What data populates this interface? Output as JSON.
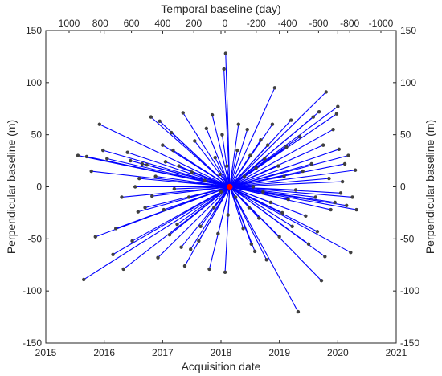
{
  "chart_data": {
    "type": "scatter",
    "title": "Temporal baseline (day)",
    "xlabel": "Acquisition date",
    "ylabel": "Perpendicular baseline (m)",
    "ylabel_right": "Perpendicular baseline (m)",
    "xlim": [
      2015,
      2021
    ],
    "ylim": [
      -150,
      150
    ],
    "x_ticks": [
      "2015",
      "2016",
      "2017",
      "2018",
      "2019",
      "2020",
      "2021"
    ],
    "y_ticks": [
      "-150",
      "-100",
      "-50",
      "0",
      "50",
      "100",
      "150"
    ],
    "top_ticks": [
      "1000",
      "800",
      "600",
      "400",
      "200",
      "0",
      "-200",
      "-400",
      "-600",
      "-800",
      "-1000"
    ],
    "grid": false,
    "colors": {
      "lines": "#0000ff",
      "points": "#404040",
      "master": "#ff0000",
      "axes": "#262626"
    },
    "master": {
      "x": 2018.15,
      "y": 0
    },
    "points": [
      {
        "x": 2015.55,
        "y": 30
      },
      {
        "x": 2015.7,
        "y": 29
      },
      {
        "x": 2015.78,
        "y": 15
      },
      {
        "x": 2015.65,
        "y": -89
      },
      {
        "x": 2015.85,
        "y": -48
      },
      {
        "x": 2015.92,
        "y": 60
      },
      {
        "x": 2015.98,
        "y": 35
      },
      {
        "x": 2016.05,
        "y": 27
      },
      {
        "x": 2016.15,
        "y": -65
      },
      {
        "x": 2016.2,
        "y": -40
      },
      {
        "x": 2016.3,
        "y": -10
      },
      {
        "x": 2016.33,
        "y": -79
      },
      {
        "x": 2016.4,
        "y": 33
      },
      {
        "x": 2016.45,
        "y": 25
      },
      {
        "x": 2016.48,
        "y": -52
      },
      {
        "x": 2016.53,
        "y": 0
      },
      {
        "x": 2016.58,
        "y": -24
      },
      {
        "x": 2016.6,
        "y": 8
      },
      {
        "x": 2016.65,
        "y": 22
      },
      {
        "x": 2016.7,
        "y": -20
      },
      {
        "x": 2016.73,
        "y": 21
      },
      {
        "x": 2016.8,
        "y": 67
      },
      {
        "x": 2016.82,
        "y": -9
      },
      {
        "x": 2016.88,
        "y": 10
      },
      {
        "x": 2016.92,
        "y": -68
      },
      {
        "x": 2016.95,
        "y": 63
      },
      {
        "x": 2017.0,
        "y": 40
      },
      {
        "x": 2017.02,
        "y": -22
      },
      {
        "x": 2017.05,
        "y": 24
      },
      {
        "x": 2017.12,
        "y": -46
      },
      {
        "x": 2017.15,
        "y": 52
      },
      {
        "x": 2017.18,
        "y": 35
      },
      {
        "x": 2017.2,
        "y": -2
      },
      {
        "x": 2017.25,
        "y": -36
      },
      {
        "x": 2017.28,
        "y": 20
      },
      {
        "x": 2017.32,
        "y": -58
      },
      {
        "x": 2017.35,
        "y": 71
      },
      {
        "x": 2017.38,
        "y": -76
      },
      {
        "x": 2017.45,
        "y": -10
      },
      {
        "x": 2017.48,
        "y": -60
      },
      {
        "x": 2017.5,
        "y": 14
      },
      {
        "x": 2017.55,
        "y": 44
      },
      {
        "x": 2017.62,
        "y": -52
      },
      {
        "x": 2017.65,
        "y": -38
      },
      {
        "x": 2017.72,
        "y": 6
      },
      {
        "x": 2017.75,
        "y": 56
      },
      {
        "x": 2017.8,
        "y": -79
      },
      {
        "x": 2017.85,
        "y": 69
      },
      {
        "x": 2017.88,
        "y": -20
      },
      {
        "x": 2017.9,
        "y": 28
      },
      {
        "x": 2017.95,
        "y": -45
      },
      {
        "x": 2017.98,
        "y": 12
      },
      {
        "x": 2018.0,
        "y": -5
      },
      {
        "x": 2018.02,
        "y": 50
      },
      {
        "x": 2018.05,
        "y": 113
      },
      {
        "x": 2018.07,
        "y": -82
      },
      {
        "x": 2018.08,
        "y": 128
      },
      {
        "x": 2018.1,
        "y": 20
      },
      {
        "x": 2018.12,
        "y": -27
      },
      {
        "x": 2018.25,
        "y": -10
      },
      {
        "x": 2018.28,
        "y": 35
      },
      {
        "x": 2018.3,
        "y": 60
      },
      {
        "x": 2018.38,
        "y": -40
      },
      {
        "x": 2018.4,
        "y": 10
      },
      {
        "x": 2018.45,
        "y": 55
      },
      {
        "x": 2018.48,
        "y": -20
      },
      {
        "x": 2018.5,
        "y": 30
      },
      {
        "x": 2018.52,
        "y": -55
      },
      {
        "x": 2018.55,
        "y": 0
      },
      {
        "x": 2018.58,
        "y": -62
      },
      {
        "x": 2018.6,
        "y": 18
      },
      {
        "x": 2018.65,
        "y": -30
      },
      {
        "x": 2018.68,
        "y": 45
      },
      {
        "x": 2018.72,
        "y": -5
      },
      {
        "x": 2018.75,
        "y": 27
      },
      {
        "x": 2018.78,
        "y": -70
      },
      {
        "x": 2018.8,
        "y": 40
      },
      {
        "x": 2018.85,
        "y": -15
      },
      {
        "x": 2018.88,
        "y": 60
      },
      {
        "x": 2018.92,
        "y": 95
      },
      {
        "x": 2018.98,
        "y": 20
      },
      {
        "x": 2019.0,
        "y": -48
      },
      {
        "x": 2019.05,
        "y": -25
      },
      {
        "x": 2019.08,
        "y": 10
      },
      {
        "x": 2019.12,
        "y": 38
      },
      {
        "x": 2019.15,
        "y": -12
      },
      {
        "x": 2019.2,
        "y": 64
      },
      {
        "x": 2019.22,
        "y": -38
      },
      {
        "x": 2019.28,
        "y": -3
      },
      {
        "x": 2019.32,
        "y": -120
      },
      {
        "x": 2019.35,
        "y": 48
      },
      {
        "x": 2019.4,
        "y": 15
      },
      {
        "x": 2019.45,
        "y": -28
      },
      {
        "x": 2019.5,
        "y": -55
      },
      {
        "x": 2019.55,
        "y": 22
      },
      {
        "x": 2019.58,
        "y": 67
      },
      {
        "x": 2019.62,
        "y": -10
      },
      {
        "x": 2019.65,
        "y": -43
      },
      {
        "x": 2019.68,
        "y": 72
      },
      {
        "x": 2019.72,
        "y": -90
      },
      {
        "x": 2019.75,
        "y": 40
      },
      {
        "x": 2019.78,
        "y": -67
      },
      {
        "x": 2019.8,
        "y": 91
      },
      {
        "x": 2019.85,
        "y": 8
      },
      {
        "x": 2019.88,
        "y": -22
      },
      {
        "x": 2019.92,
        "y": 55
      },
      {
        "x": 2019.95,
        "y": -15
      },
      {
        "x": 2019.98,
        "y": 70
      },
      {
        "x": 2020.0,
        "y": 77
      },
      {
        "x": 2020.02,
        "y": 36
      },
      {
        "x": 2020.05,
        "y": -6
      },
      {
        "x": 2020.08,
        "y": 5
      },
      {
        "x": 2020.12,
        "y": 22
      },
      {
        "x": 2020.15,
        "y": -18
      },
      {
        "x": 2020.18,
        "y": 30
      },
      {
        "x": 2020.22,
        "y": -63
      },
      {
        "x": 2020.25,
        "y": -10
      },
      {
        "x": 2020.3,
        "y": 16
      },
      {
        "x": 2020.32,
        "y": -22
      }
    ]
  }
}
